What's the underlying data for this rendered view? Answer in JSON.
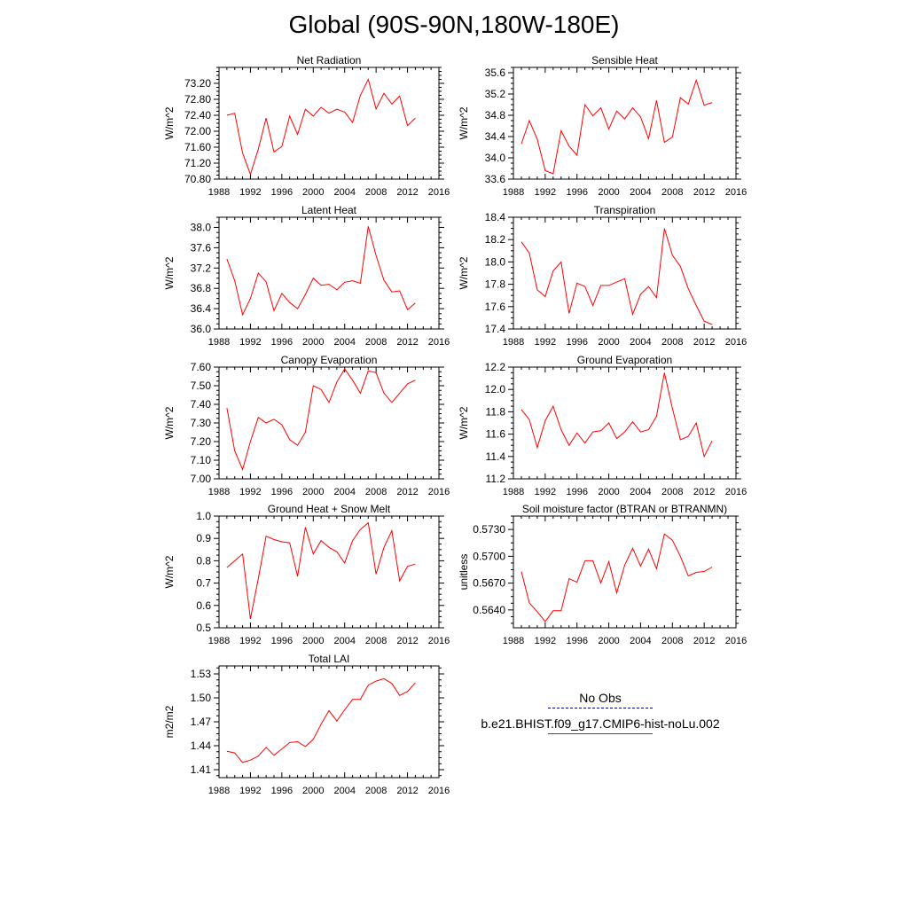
{
  "title": "Global (90S-90N,180W-180E)",
  "colors": {
    "model": "#ff0000",
    "obs": "#000080"
  },
  "legend": {
    "obs_label": "No Obs",
    "model_label": "b.e21.BHIST.f09_g17.CMIP6-hist-noLu.002"
  },
  "chart_data": [
    {
      "type": "line",
      "title": "Net Radiation",
      "ylabel": "W/m^2",
      "xlim": [
        1988,
        2016
      ],
      "ylim": [
        70.8,
        73.6
      ],
      "x_ticks": [
        1988,
        1992,
        1996,
        2000,
        2004,
        2008,
        2012,
        2016
      ],
      "x_tick_labels": [
        "1988",
        "1992",
        "1996",
        "2000",
        "2004",
        "2008",
        "2012",
        "2016"
      ],
      "y_ticks": [
        70.8,
        71.2,
        71.6,
        72.0,
        72.4,
        72.8,
        73.2
      ],
      "y_tick_labels": [
        "70.80",
        "71.20",
        "71.60",
        "72.00",
        "72.40",
        "72.80",
        "73.20"
      ],
      "x": [
        1989,
        1990,
        1991,
        1992,
        1993,
        1994,
        1995,
        1996,
        1997,
        1998,
        1999,
        2000,
        2001,
        2002,
        2003,
        2004,
        2005,
        2006,
        2007,
        2008,
        2009,
        2010,
        2011,
        2012,
        2013
      ],
      "series": [
        {
          "color": "#ff0000",
          "values": [
            72.4,
            72.45,
            71.45,
            70.92,
            71.55,
            72.33,
            71.48,
            71.62,
            72.38,
            71.92,
            72.55,
            72.38,
            72.6,
            72.45,
            72.55,
            72.48,
            72.22,
            72.9,
            73.3,
            72.56,
            72.95,
            72.68,
            72.88,
            72.14,
            72.33
          ]
        }
      ]
    },
    {
      "type": "line",
      "title": "Sensible Heat",
      "ylabel": "W/m^2",
      "xlim": [
        1988,
        2016
      ],
      "ylim": [
        33.6,
        35.7
      ],
      "x_ticks": [
        1988,
        1992,
        1996,
        2000,
        2004,
        2008,
        2012,
        2016
      ],
      "x_tick_labels": [
        "1988",
        "1992",
        "1996",
        "2000",
        "2004",
        "2008",
        "2012",
        "2016"
      ],
      "y_ticks": [
        33.6,
        34.0,
        34.4,
        34.8,
        35.2,
        35.6
      ],
      "y_tick_labels": [
        "33.6",
        "34.0",
        "34.4",
        "34.8",
        "35.2",
        "35.6"
      ],
      "x": [
        1989,
        1990,
        1991,
        1992,
        1993,
        1994,
        1995,
        1996,
        1997,
        1998,
        1999,
        2000,
        2001,
        2002,
        2003,
        2004,
        2005,
        2006,
        2007,
        2008,
        2009,
        2010,
        2011,
        2012,
        2013
      ],
      "series": [
        {
          "color": "#ff0000",
          "values": [
            34.26,
            34.7,
            34.35,
            33.76,
            33.7,
            34.51,
            34.22,
            34.05,
            35.0,
            34.79,
            34.94,
            34.54,
            34.88,
            34.73,
            34.94,
            34.77,
            34.36,
            35.08,
            34.29,
            34.39,
            35.13,
            35.01,
            35.46,
            34.99,
            35.04
          ]
        }
      ]
    },
    {
      "type": "line",
      "title": "Latent Heat",
      "ylabel": "W/m^2",
      "xlim": [
        1988,
        2016
      ],
      "ylim": [
        36.0,
        38.2
      ],
      "x_ticks": [
        1988,
        1992,
        1996,
        2000,
        2004,
        2008,
        2012,
        2016
      ],
      "x_tick_labels": [
        "1988",
        "1992",
        "1996",
        "2000",
        "2004",
        "2008",
        "2012",
        "2016"
      ],
      "y_ticks": [
        36.0,
        36.4,
        36.8,
        37.2,
        37.6,
        38.0
      ],
      "y_tick_labels": [
        "36.0",
        "36.4",
        "36.8",
        "37.2",
        "37.6",
        "38.0"
      ],
      "x": [
        1989,
        1990,
        1991,
        1992,
        1993,
        1994,
        1995,
        1996,
        1997,
        1998,
        1999,
        2000,
        2001,
        2002,
        2003,
        2004,
        2005,
        2006,
        2007,
        2008,
        2009,
        2010,
        2011,
        2012,
        2013
      ],
      "series": [
        {
          "color": "#ff0000",
          "values": [
            37.38,
            36.95,
            36.28,
            36.6,
            37.1,
            36.93,
            36.36,
            36.7,
            36.52,
            36.4,
            36.68,
            37.0,
            36.86,
            36.88,
            36.77,
            36.92,
            36.95,
            36.9,
            38.02,
            37.45,
            36.96,
            36.73,
            36.75,
            36.38,
            36.51
          ]
        }
      ]
    },
    {
      "type": "line",
      "title": "Transpiration",
      "ylabel": "W/m^2",
      "xlim": [
        1988,
        2016
      ],
      "ylim": [
        17.4,
        18.4
      ],
      "x_ticks": [
        1988,
        1992,
        1996,
        2000,
        2004,
        2008,
        2012,
        2016
      ],
      "x_tick_labels": [
        "1988",
        "1992",
        "1996",
        "2000",
        "2004",
        "2008",
        "2012",
        "2016"
      ],
      "y_ticks": [
        17.4,
        17.6,
        17.8,
        18.0,
        18.2,
        18.4
      ],
      "y_tick_labels": [
        "17.4",
        "17.6",
        "17.8",
        "18.0",
        "18.2",
        "18.4"
      ],
      "x": [
        1989,
        1990,
        1991,
        1992,
        1993,
        1994,
        1995,
        1996,
        1997,
        1998,
        1999,
        2000,
        2001,
        2002,
        2003,
        2004,
        2005,
        2006,
        2007,
        2008,
        2009,
        2010,
        2011,
        2012,
        2013
      ],
      "series": [
        {
          "color": "#ff0000",
          "values": [
            18.18,
            18.08,
            17.75,
            17.69,
            17.92,
            18.0,
            17.54,
            17.81,
            17.78,
            17.61,
            17.79,
            17.79,
            17.82,
            17.85,
            17.53,
            17.71,
            17.78,
            17.68,
            18.3,
            18.06,
            17.96,
            17.76,
            17.61,
            17.47,
            17.44
          ]
        }
      ]
    },
    {
      "type": "line",
      "title": "Canopy Evaporation",
      "ylabel": "W/m^2",
      "xlim": [
        1988,
        2016
      ],
      "ylim": [
        7.0,
        7.6
      ],
      "x_ticks": [
        1988,
        1992,
        1996,
        2000,
        2004,
        2008,
        2012,
        2016
      ],
      "x_tick_labels": [
        "1988",
        "1992",
        "1996",
        "2000",
        "2004",
        "2008",
        "2012",
        "2016"
      ],
      "y_ticks": [
        7.0,
        7.1,
        7.2,
        7.3,
        7.4,
        7.5,
        7.6
      ],
      "y_tick_labels": [
        "7.00",
        "7.10",
        "7.20",
        "7.30",
        "7.40",
        "7.50",
        "7.60"
      ],
      "x": [
        1989,
        1990,
        1991,
        1992,
        1993,
        1994,
        1995,
        1996,
        1997,
        1998,
        1999,
        2000,
        2001,
        2002,
        2003,
        2004,
        2005,
        2006,
        2007,
        2008,
        2009,
        2010,
        2011,
        2012,
        2013
      ],
      "series": [
        {
          "color": "#ff0000",
          "values": [
            7.38,
            7.15,
            7.05,
            7.2,
            7.33,
            7.3,
            7.32,
            7.29,
            7.21,
            7.18,
            7.25,
            7.5,
            7.48,
            7.41,
            7.52,
            7.59,
            7.53,
            7.46,
            7.58,
            7.57,
            7.46,
            7.41,
            7.46,
            7.51,
            7.53
          ]
        }
      ]
    },
    {
      "type": "line",
      "title": "Ground Evaporation",
      "ylabel": "W/m^2",
      "xlim": [
        1988,
        2016
      ],
      "ylim": [
        11.2,
        12.2
      ],
      "x_ticks": [
        1988,
        1992,
        1996,
        2000,
        2004,
        2008,
        2012,
        2016
      ],
      "x_tick_labels": [
        "1988",
        "1992",
        "1996",
        "2000",
        "2004",
        "2008",
        "2012",
        "2016"
      ],
      "y_ticks": [
        11.2,
        11.4,
        11.6,
        11.8,
        12.0,
        12.2
      ],
      "y_tick_labels": [
        "11.2",
        "11.4",
        "11.6",
        "11.8",
        "12.0",
        "12.2"
      ],
      "x": [
        1989,
        1990,
        1991,
        1992,
        1993,
        1994,
        1995,
        1996,
        1997,
        1998,
        1999,
        2000,
        2001,
        2002,
        2003,
        2004,
        2005,
        2006,
        2007,
        2008,
        2009,
        2010,
        2011,
        2012,
        2013
      ],
      "series": [
        {
          "color": "#ff0000",
          "values": [
            11.82,
            11.73,
            11.48,
            11.72,
            11.85,
            11.64,
            11.5,
            11.61,
            11.52,
            11.62,
            11.63,
            11.7,
            11.56,
            11.62,
            11.71,
            11.62,
            11.64,
            11.76,
            12.15,
            11.83,
            11.55,
            11.58,
            11.7,
            11.4,
            11.54
          ]
        }
      ]
    },
    {
      "type": "line",
      "title": "Ground Heat + Snow Melt",
      "ylabel": "W/m^2",
      "xlim": [
        1988,
        2016
      ],
      "ylim": [
        0.5,
        1.0
      ],
      "x_ticks": [
        1988,
        1992,
        1996,
        2000,
        2004,
        2008,
        2012,
        2016
      ],
      "x_tick_labels": [
        "1988",
        "1992",
        "1996",
        "2000",
        "2004",
        "2008",
        "2012",
        "2016"
      ],
      "y_ticks": [
        0.5,
        0.6,
        0.7,
        0.8,
        0.9,
        1.0
      ],
      "y_tick_labels": [
        "0.5",
        "0.6",
        "0.7",
        "0.8",
        "0.9",
        "1.0"
      ],
      "x": [
        1989,
        1990,
        1991,
        1992,
        1993,
        1994,
        1995,
        1996,
        1997,
        1998,
        1999,
        2000,
        2001,
        2002,
        2003,
        2004,
        2005,
        2006,
        2007,
        2008,
        2009,
        2010,
        2011,
        2012,
        2013
      ],
      "series": [
        {
          "color": "#ff0000",
          "values": [
            0.77,
            0.8,
            0.83,
            0.54,
            0.72,
            0.91,
            0.895,
            0.885,
            0.88,
            0.73,
            0.95,
            0.83,
            0.89,
            0.86,
            0.84,
            0.79,
            0.89,
            0.94,
            0.97,
            0.74,
            0.86,
            0.935,
            0.71,
            0.775,
            0.785
          ]
        }
      ]
    },
    {
      "type": "line",
      "title": "Soil moisture factor (BTRAN or BTRANMN)",
      "ylabel": "unitless",
      "xlim": [
        1988,
        2016
      ],
      "ylim": [
        0.562,
        0.5745
      ],
      "x_ticks": [
        1988,
        1992,
        1996,
        2000,
        2004,
        2008,
        2012,
        2016
      ],
      "x_tick_labels": [
        "1988",
        "1992",
        "1996",
        "2000",
        "2004",
        "2008",
        "2012",
        "2016"
      ],
      "y_ticks": [
        0.564,
        0.567,
        0.57,
        0.573
      ],
      "y_tick_labels": [
        "0.5640",
        "0.5670",
        "0.5700",
        "0.5730"
      ],
      "x": [
        1989,
        1990,
        1991,
        1992,
        1993,
        1994,
        1995,
        1996,
        1997,
        1998,
        1999,
        2000,
        2001,
        2002,
        2003,
        2004,
        2005,
        2006,
        2007,
        2008,
        2009,
        2010,
        2011,
        2012,
        2013
      ],
      "series": [
        {
          "color": "#ff0000",
          "values": [
            0.5683,
            0.5648,
            0.5638,
            0.5627,
            0.5639,
            0.5639,
            0.5675,
            0.5671,
            0.5695,
            0.5695,
            0.567,
            0.5694,
            0.5659,
            0.569,
            0.5709,
            0.5689,
            0.5708,
            0.5686,
            0.5725,
            0.5718,
            0.57,
            0.5678,
            0.5682,
            0.5683,
            0.5688
          ]
        }
      ]
    },
    {
      "type": "line",
      "title": "Total LAI",
      "ylabel": "m2/m2",
      "xlim": [
        1988,
        2016
      ],
      "ylim": [
        1.4,
        1.54
      ],
      "x_ticks": [
        1988,
        1992,
        1996,
        2000,
        2004,
        2008,
        2012,
        2016
      ],
      "x_tick_labels": [
        "1988",
        "1992",
        "1996",
        "2000",
        "2004",
        "2008",
        "2012",
        "2016"
      ],
      "y_ticks": [
        1.41,
        1.44,
        1.47,
        1.5,
        1.53
      ],
      "y_tick_labels": [
        "1.41",
        "1.44",
        "1.47",
        "1.50",
        "1.53"
      ],
      "x": [
        1989,
        1990,
        1991,
        1992,
        1993,
        1994,
        1995,
        1996,
        1997,
        1998,
        1999,
        2000,
        2001,
        2002,
        2003,
        2004,
        2005,
        2006,
        2007,
        2008,
        2009,
        2010,
        2011,
        2012,
        2013
      ],
      "series": [
        {
          "color": "#ff0000",
          "values": [
            1.433,
            1.431,
            1.419,
            1.422,
            1.427,
            1.438,
            1.428,
            1.436,
            1.444,
            1.445,
            1.439,
            1.448,
            1.467,
            1.484,
            1.471,
            1.485,
            1.498,
            1.498,
            1.516,
            1.521,
            1.524,
            1.518,
            1.503,
            1.508,
            1.519
          ]
        }
      ]
    }
  ]
}
